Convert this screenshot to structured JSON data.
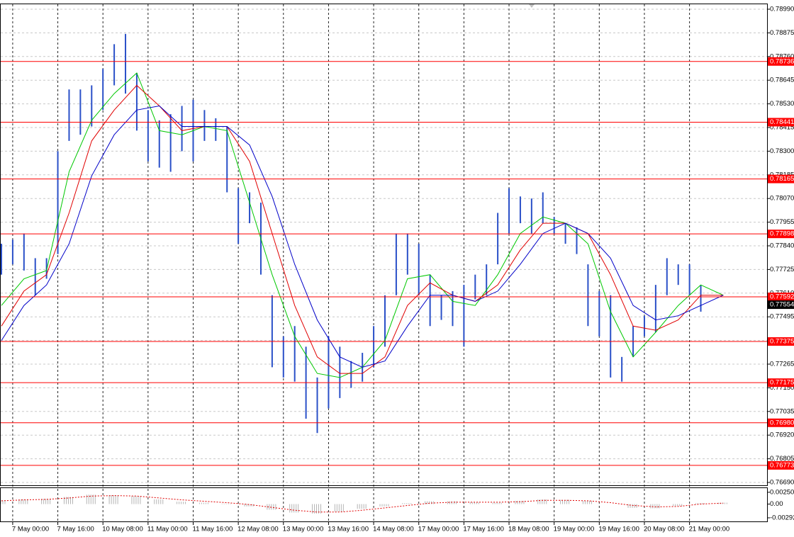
{
  "chart_data": [
    {
      "type": "hlbar",
      "x": [
        -1,
        0,
        1,
        2,
        3,
        4,
        5,
        6,
        7,
        8,
        9,
        10,
        11,
        12,
        13,
        14,
        15,
        16,
        17,
        18,
        19,
        20,
        21,
        22,
        23,
        24,
        25,
        26,
        27,
        28,
        29,
        30,
        31,
        32,
        33,
        34,
        35,
        36,
        37,
        38,
        39,
        40,
        41,
        42,
        43,
        44,
        45,
        46,
        47,
        48,
        49,
        50,
        51,
        52,
        53,
        54,
        55,
        56,
        57,
        58,
        59,
        60,
        61
      ],
      "low": [
        0.777,
        0.7775,
        0.7772,
        0.776,
        0.7768,
        0.778,
        0.7835,
        0.7838,
        0.7842,
        0.785,
        0.7862,
        0.7858,
        0.784,
        0.7825,
        0.7822,
        0.782,
        0.783,
        0.7825,
        0.7835,
        0.7835,
        0.781,
        0.7785,
        0.7795,
        0.777,
        0.7725,
        0.772,
        0.7718,
        0.77,
        0.7693,
        0.7705,
        0.771,
        0.7715,
        0.7718,
        0.7725,
        0.7735,
        0.776,
        0.777,
        0.776,
        0.7745,
        0.7748,
        0.7745,
        0.7735,
        0.7758,
        0.776,
        0.7775,
        0.779,
        0.7795,
        0.779,
        0.7795,
        0.779,
        0.7785,
        0.778,
        0.7745,
        0.774,
        0.772,
        0.7718,
        0.773,
        0.774,
        0.7742,
        0.776,
        0.7765,
        0.776,
        0.7752
      ],
      "high": [
        0.7785,
        0.7787,
        0.779,
        0.7778,
        0.7778,
        0.783,
        0.786,
        0.786,
        0.7862,
        0.787,
        0.7882,
        0.7887,
        0.7868,
        0.785,
        0.7845,
        0.7848,
        0.7852,
        0.7855,
        0.785,
        0.7846,
        0.7842,
        0.7812,
        0.781,
        0.7805,
        0.776,
        0.774,
        0.7745,
        0.7735,
        0.772,
        0.774,
        0.7735,
        0.7728,
        0.7732,
        0.7745,
        0.776,
        0.779,
        0.779,
        0.7785,
        0.777,
        0.776,
        0.7762,
        0.7765,
        0.777,
        0.7775,
        0.78,
        0.7812,
        0.7808,
        0.7807,
        0.781,
        0.7798,
        0.7795,
        0.7793,
        0.7775,
        0.7762,
        0.776,
        0.773,
        0.7745,
        0.775,
        0.7765,
        0.7778,
        0.7775,
        0.7775,
        0.7765
      ],
      "bar_color": "#2a50c8",
      "series": [
        {
          "color": "#00c800",
          "x": [
            -1,
            1,
            3,
            5,
            7,
            9,
            11,
            13,
            15,
            17,
            19,
            21,
            23,
            25,
            27,
            29,
            31,
            33,
            35,
            37,
            39,
            41,
            43,
            45,
            47,
            49,
            51,
            53,
            55,
            57,
            59,
            61,
            63
          ],
          "values": [
            0.7755,
            0.7768,
            0.7772,
            0.782,
            0.7845,
            0.7858,
            0.7868,
            0.784,
            0.7838,
            0.7842,
            0.784,
            0.7805,
            0.777,
            0.774,
            0.7722,
            0.772,
            0.7725,
            0.7738,
            0.7768,
            0.777,
            0.7757,
            0.7755,
            0.777,
            0.779,
            0.7798,
            0.7795,
            0.7785,
            0.7752,
            0.773,
            0.7742,
            0.7755,
            0.7765,
            0.776
          ]
        },
        {
          "color": "#e00000",
          "x": [
            -1,
            1,
            3,
            5,
            7,
            9,
            11,
            13,
            15,
            17,
            19,
            21,
            23,
            25,
            27,
            29,
            31,
            33,
            35,
            37,
            39,
            41,
            43,
            45,
            47,
            49,
            51,
            53,
            55,
            57,
            59,
            61,
            63
          ],
          "values": [
            0.7745,
            0.7762,
            0.777,
            0.78,
            0.7835,
            0.785,
            0.7862,
            0.7852,
            0.784,
            0.7842,
            0.7842,
            0.7825,
            0.779,
            0.7755,
            0.773,
            0.7722,
            0.7722,
            0.773,
            0.7755,
            0.7766,
            0.776,
            0.7757,
            0.7765,
            0.7782,
            0.7795,
            0.7795,
            0.779,
            0.777,
            0.7745,
            0.7743,
            0.7748,
            0.776,
            0.776
          ]
        },
        {
          "color": "#0000c8",
          "x": [
            -1,
            1,
            3,
            5,
            7,
            9,
            11,
            13,
            15,
            17,
            19,
            21,
            23,
            25,
            27,
            29,
            31,
            33,
            35,
            37,
            39,
            41,
            43,
            45,
            47,
            49,
            51,
            53,
            55,
            57,
            59,
            61,
            63
          ],
          "values": [
            0.7738,
            0.7755,
            0.7765,
            0.7785,
            0.7818,
            0.7838,
            0.785,
            0.7852,
            0.7842,
            0.7842,
            0.7842,
            0.7833,
            0.7808,
            0.7775,
            0.7748,
            0.773,
            0.7725,
            0.7728,
            0.7745,
            0.776,
            0.776,
            0.7757,
            0.7762,
            0.7775,
            0.779,
            0.7795,
            0.779,
            0.7778,
            0.7755,
            0.7748,
            0.775,
            0.7755,
            0.776
          ]
        }
      ],
      "levels": [
        0.78736,
        0.78441,
        0.78165,
        0.77898,
        0.77592,
        0.77375,
        0.77175,
        {
          "value": 0.7698,
          "label": "0.76980"
        },
        0.76773
      ],
      "level_color": "#ff0000",
      "last_price": 0.77554,
      "xlim": [
        -1.0625,
        66.9375
      ],
      "xticks": [
        {
          "value": 0,
          "label": "7 May 00:00"
        },
        {
          "value": 4,
          "label": "7 May 16:00"
        },
        {
          "value": 8,
          "label": "10 May 08:00"
        },
        {
          "value": 12,
          "label": "11 May 00:00"
        },
        {
          "value": 16,
          "label": "11 May 16:00"
        },
        {
          "value": 20,
          "label": "12 May 08:00"
        },
        {
          "value": 24,
          "label": "13 May 00:00"
        },
        {
          "value": 28,
          "label": "13 May 16:00"
        },
        {
          "value": 32,
          "label": "14 May 08:00"
        },
        {
          "value": 36,
          "label": "17 May 00:00"
        },
        {
          "value": 40,
          "label": "17 May 16:00"
        },
        {
          "value": 44,
          "label": "18 May 08:00"
        },
        {
          "value": 48,
          "label": "19 May 00:00"
        },
        {
          "value": 52,
          "label": "19 May 16:00"
        },
        {
          "value": 56,
          "label": "20 May 08:00"
        },
        {
          "value": 60,
          "label": "21 May 00:00"
        }
      ],
      "ylim": [
        0.7669,
        0.7899
      ],
      "yticks": [
        {
          "value": 0.7899,
          "label": "0.78990"
        },
        0.78875,
        {
          "value": 0.7876,
          "label": "0.78760"
        },
        0.78645,
        {
          "value": 0.7853,
          "label": "0.78530"
        },
        0.78415,
        {
          "value": 0.783,
          "label": "0.78300"
        },
        0.78185,
        {
          "value": 0.7807,
          "label": "0.78070"
        },
        0.77955,
        {
          "value": 0.7784,
          "label": "0.77840"
        },
        0.77725,
        {
          "value": 0.7761,
          "label": "0.77610"
        },
        0.77495,
        {
          "value": 0.7738,
          "label": "0.77380"
        },
        0.77265,
        {
          "value": 0.7715,
          "label": "0.77150"
        },
        0.77035,
        {
          "value": 0.7692,
          "label": "0.76920"
        },
        0.76805,
        {
          "value": 0.7669,
          "label": "0.76690"
        }
      ],
      "grid": true
    },
    {
      "type": "histogram",
      "x": [
        -1,
        1,
        3,
        5,
        7,
        9,
        11,
        13,
        15,
        17,
        19,
        21,
        23,
        25,
        27,
        29,
        31,
        33,
        35,
        37,
        39,
        41,
        43,
        45,
        47,
        49,
        51,
        53,
        55,
        57,
        59,
        61,
        63
      ],
      "values": [
        0.0008,
        0.001,
        0.0011,
        0.0015,
        0.002,
        0.0019,
        0.0017,
        0.001,
        0.0005,
        0.0003,
        0.0001,
        -0.0005,
        -0.0012,
        -0.0018,
        -0.002,
        -0.0016,
        -0.001,
        -0.0005,
        0.0002,
        0.0006,
        0.0006,
        0.0004,
        0.0003,
        0.0007,
        0.001,
        0.0009,
        0.0007,
        0.0,
        -0.0008,
        -0.0009,
        -0.0004,
        0.0002,
        0.0003
      ],
      "color": "#b4b4b4",
      "signal": [
        0.0007,
        0.0009,
        0.001,
        0.0013,
        0.0017,
        0.0018,
        0.0017,
        0.0013,
        0.0009,
        0.0006,
        0.0003,
        -0.0001,
        -0.0007,
        -0.0013,
        -0.0017,
        -0.0017,
        -0.0013,
        -0.0008,
        -0.0003,
        0.0002,
        0.0004,
        0.0004,
        0.0004,
        0.0005,
        0.0008,
        0.0008,
        0.0007,
        0.0003,
        -0.0003,
        -0.0006,
        -0.0005,
        0.0,
        0.0002
      ],
      "signal_color": "#e00000",
      "xlim": [
        -1.0625,
        66.9375
      ],
      "ylim": [
        -0.00368,
        0.00339
      ],
      "yticks": [
        0.002505,
        {
          "value": 0,
          "label": "0.00"
        },
        -0.00292
      ]
    }
  ]
}
